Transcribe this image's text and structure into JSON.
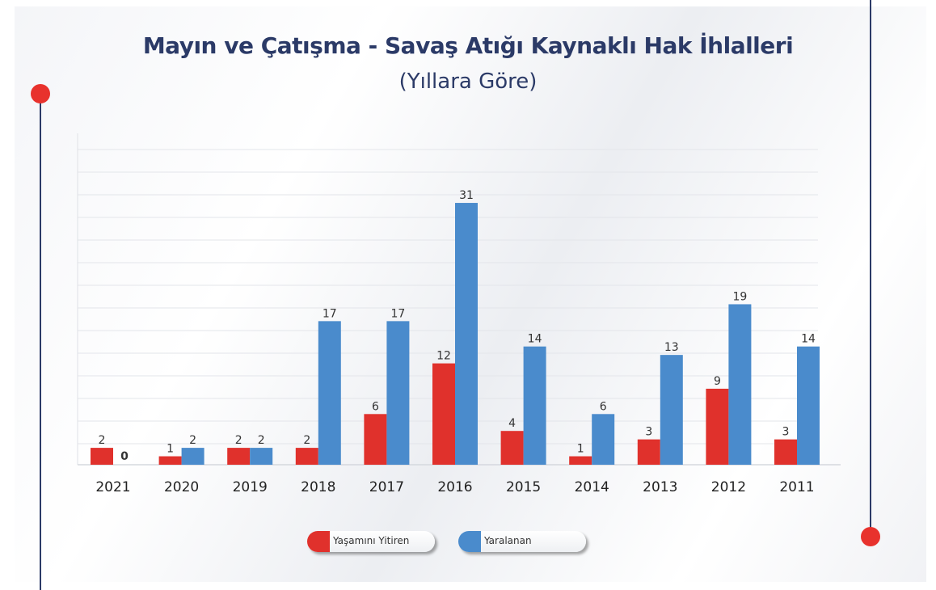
{
  "chart_data": {
    "type": "bar",
    "title": "Mayın ve Çatışma - Savaş Atığı Kaynaklı Hak İhlalleri",
    "subtitle": "(Yıllara Göre)",
    "categories": [
      "2021",
      "2020",
      "2019",
      "2018",
      "2017",
      "2016",
      "2015",
      "2014",
      "2013",
      "2012",
      "2011"
    ],
    "series": [
      {
        "name": "Yaşamını Yitiren",
        "color": "#e0312c",
        "values": [
          2,
          1,
          2,
          2,
          6,
          12,
          4,
          1,
          3,
          9,
          3
        ]
      },
      {
        "name": "Yaralanan",
        "color": "#4a8bcc",
        "values": [
          0,
          2,
          2,
          17,
          17,
          31,
          14,
          6,
          13,
          19,
          14
        ]
      }
    ],
    "ylim": [
      0,
      35
    ],
    "grid": true,
    "legend_position": "bottom-center",
    "data_labels": true
  },
  "colors": {
    "title": "#2b3a67",
    "accent_red": "#e8322d",
    "decor_line": "#2b3a67",
    "grid": "#e3e5ea"
  }
}
